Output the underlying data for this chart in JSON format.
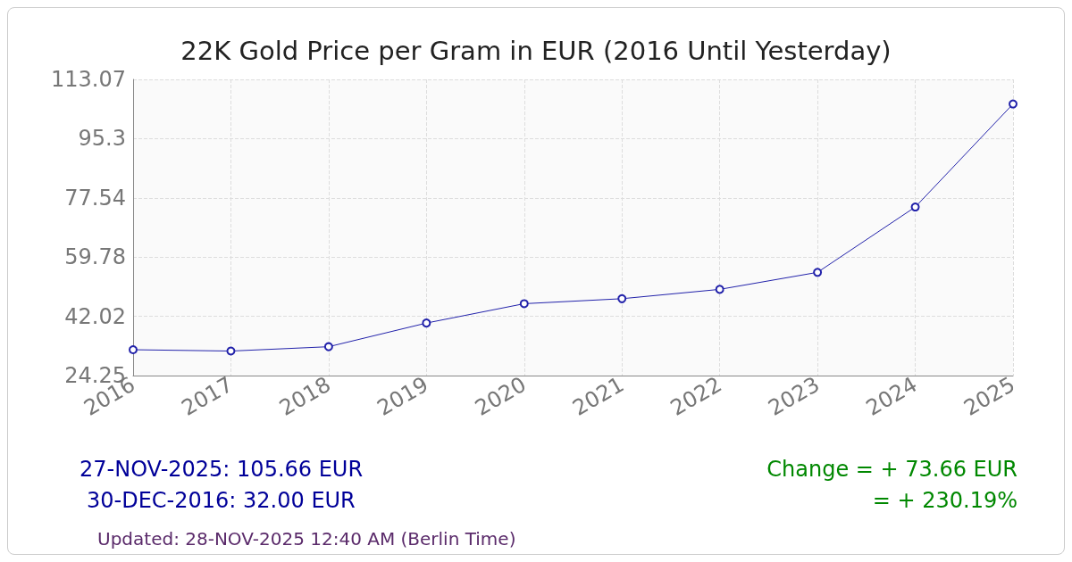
{
  "chart_data": {
    "type": "line",
    "title": "22K Gold Price per Gram in EUR (2016 Until Yesterday)",
    "categories": [
      "2016",
      "2017",
      "2018",
      "2019",
      "2020",
      "2021",
      "2022",
      "2023",
      "2024",
      "2025"
    ],
    "series": [
      {
        "color": "#2222aa",
        "values": [
          32.0,
          31.6,
          32.9,
          40.0,
          45.8,
          47.3,
          50.1,
          55.2,
          74.8,
          105.7
        ]
      }
    ],
    "ylim": [
      24.25,
      113.07
    ],
    "yticks": [
      24.25,
      42.02,
      59.78,
      77.54,
      95.3,
      113.07
    ],
    "grid": true,
    "marker": "circle",
    "line_style": "solid",
    "annotations": [
      "27-NOV-2025: 105.66 EUR",
      "30-DEC-2016: 32.00 EUR",
      "Change = + 73.66 EUR",
      "= + 230.19%",
      "Updated: 28-NOV-2025 12:40 AM (Berlin Time)"
    ]
  }
}
